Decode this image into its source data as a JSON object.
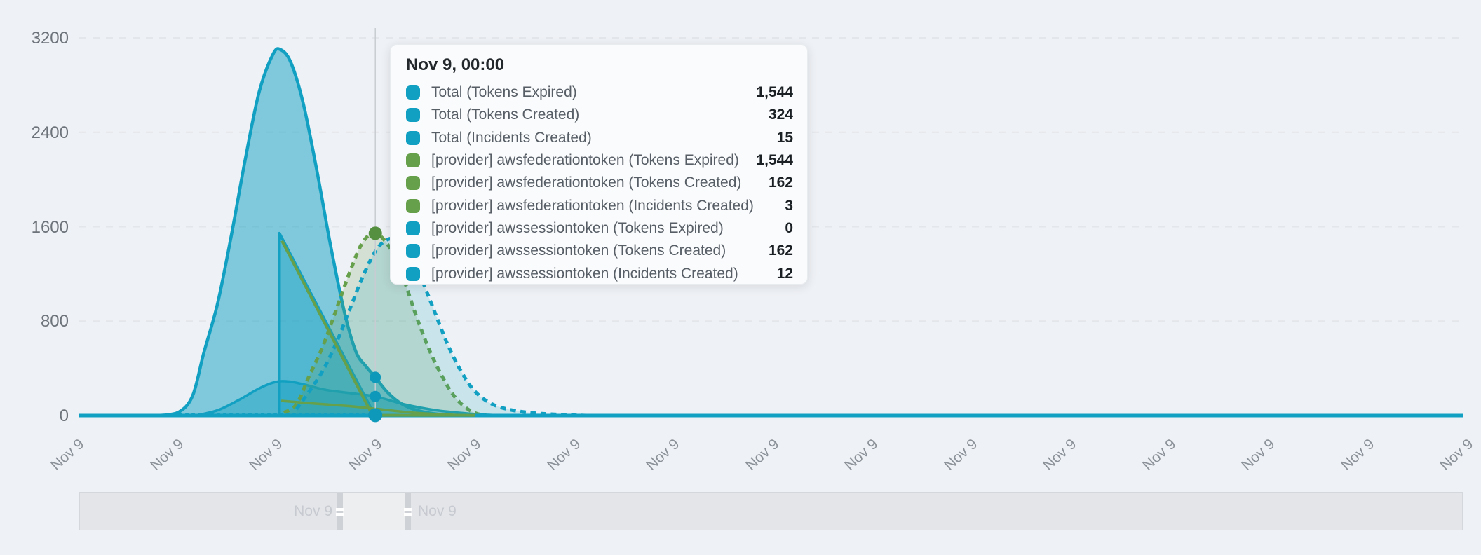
{
  "palette": {
    "teal": "#12a0c2",
    "green": "#67a04a",
    "teal_dot": "#0e98ba",
    "green_dot": "#549040",
    "background": "#eef1f5",
    "gridline": "#e3e6ea",
    "crosshair": "#c8ccd2"
  },
  "chart_data": {
    "type": "area",
    "title": "",
    "xlabel": "",
    "ylabel": "",
    "ylim": [
      0,
      3200
    ],
    "yticks": [
      0,
      800,
      1600,
      2400,
      3200
    ],
    "xtick_labels": [
      "Nov 9",
      "Nov 9",
      "Nov 9",
      "Nov 9",
      "Nov 9",
      "Nov 9",
      "Nov 9",
      "Nov 9",
      "Nov 9",
      "Nov 9",
      "Nov 9",
      "Nov 9",
      "Nov 9",
      "Nov 9",
      "Nov 9"
    ],
    "grid": "horizontal-dashed",
    "legend": "none",
    "crosshair_f": 0.214,
    "tooltip": {
      "title": "Nov 9, 00:00",
      "rows": [
        {
          "color": "teal",
          "label": "Total (Tokens Expired)",
          "value": "1,544"
        },
        {
          "color": "teal",
          "label": "Total (Tokens Created)",
          "value": "324"
        },
        {
          "color": "teal",
          "label": "Total (Incidents Created)",
          "value": "15"
        },
        {
          "color": "green",
          "label": "[provider] awsfederationtoken (Tokens Expired)",
          "value": "1,544"
        },
        {
          "color": "green",
          "label": "[provider] awsfederationtoken (Tokens Created)",
          "value": "162"
        },
        {
          "color": "green",
          "label": "[provider] awsfederationtoken (Incidents Created)",
          "value": "3"
        },
        {
          "color": "teal",
          "label": "[provider] awssessiontoken (Tokens Expired)",
          "value": "0"
        },
        {
          "color": "teal",
          "label": "[provider] awssessiontoken (Tokens Created)",
          "value": "162"
        },
        {
          "color": "teal",
          "label": "[provider] awssessiontoken (Incidents Created)",
          "value": "12"
        }
      ]
    },
    "navigator": {
      "left_label": "Nov 9",
      "right_label": "Nov 9"
    },
    "series": [
      {
        "name": "big-teal-bell",
        "color": "teal",
        "style": "solid",
        "width": 4.5,
        "fill": 0.5,
        "smooth": true,
        "points": [
          [
            0.058,
            0
          ],
          [
            0.072,
            30
          ],
          [
            0.082,
            170
          ],
          [
            0.09,
            530
          ],
          [
            0.1,
            950
          ],
          [
            0.11,
            1530
          ],
          [
            0.12,
            2170
          ],
          [
            0.13,
            2740
          ],
          [
            0.14,
            3060
          ],
          [
            0.1455,
            3100
          ],
          [
            0.153,
            2990
          ],
          [
            0.162,
            2640
          ],
          [
            0.172,
            2060
          ],
          [
            0.182,
            1420
          ],
          [
            0.192,
            860
          ],
          [
            0.2,
            540
          ],
          [
            0.207,
            420
          ],
          [
            0.214,
            324
          ],
          [
            0.223,
            195
          ],
          [
            0.233,
            100
          ],
          [
            0.246,
            38
          ],
          [
            0.26,
            10
          ],
          [
            0.275,
            0
          ]
        ]
      },
      {
        "name": "small-teal-bump",
        "color": "teal",
        "style": "solid",
        "width": 3.5,
        "fill": 0.45,
        "smooth": true,
        "points": [
          [
            0.084,
            0
          ],
          [
            0.1,
            45
          ],
          [
            0.115,
            130
          ],
          [
            0.13,
            230
          ],
          [
            0.142,
            285
          ],
          [
            0.152,
            288
          ],
          [
            0.163,
            262
          ],
          [
            0.178,
            218
          ],
          [
            0.196,
            190
          ],
          [
            0.214,
            162
          ],
          [
            0.235,
            95
          ],
          [
            0.258,
            45
          ],
          [
            0.282,
            16
          ],
          [
            0.305,
            0
          ]
        ]
      },
      {
        "name": "expired-drop-triangle",
        "color": "teal",
        "style": "solid",
        "width": 4,
        "fill": 0.42,
        "smooth": false,
        "points": [
          [
            0.1447,
            6
          ],
          [
            0.1447,
            1544
          ],
          [
            0.2135,
            4
          ]
        ]
      },
      {
        "name": "green-dashed-bell",
        "color": "green",
        "style": "dashed",
        "width": 5,
        "fill": 0.2,
        "smooth": true,
        "points": [
          [
            0.148,
            25
          ],
          [
            0.157,
            95
          ],
          [
            0.166,
            330
          ],
          [
            0.176,
            585
          ],
          [
            0.186,
            905
          ],
          [
            0.196,
            1230
          ],
          [
            0.205,
            1470
          ],
          [
            0.214,
            1544
          ],
          [
            0.224,
            1430
          ],
          [
            0.234,
            1170
          ],
          [
            0.244,
            830
          ],
          [
            0.254,
            530
          ],
          [
            0.264,
            295
          ],
          [
            0.272,
            150
          ],
          [
            0.28,
            62
          ],
          [
            0.287,
            18
          ],
          [
            0.294,
            0
          ]
        ]
      },
      {
        "name": "teal-dashed-bell",
        "color": "teal",
        "style": "dashed",
        "width": 5,
        "fill": 0.16,
        "smooth": true,
        "points": [
          [
            0.157,
            55
          ],
          [
            0.166,
            200
          ],
          [
            0.176,
            380
          ],
          [
            0.186,
            620
          ],
          [
            0.196,
            915
          ],
          [
            0.206,
            1205
          ],
          [
            0.216,
            1425
          ],
          [
            0.226,
            1500
          ],
          [
            0.236,
            1420
          ],
          [
            0.246,
            1195
          ],
          [
            0.256,
            905
          ],
          [
            0.266,
            610
          ],
          [
            0.276,
            375
          ],
          [
            0.286,
            205
          ],
          [
            0.298,
            100
          ],
          [
            0.312,
            48
          ],
          [
            0.33,
            20
          ],
          [
            0.35,
            7
          ],
          [
            0.366,
            0
          ]
        ]
      },
      {
        "name": "total-baseline",
        "color": "teal",
        "style": "solid",
        "width": 5,
        "fill": 0,
        "smooth": false,
        "points": [
          [
            0,
            0
          ],
          [
            1,
            0
          ]
        ]
      },
      {
        "name": "zero-dotted-line",
        "color": "teal",
        "style": "dotted",
        "width": 4.5,
        "fill": 0,
        "smooth": false,
        "points": [
          [
            0.073,
            10
          ],
          [
            0.2135,
            10
          ]
        ]
      },
      {
        "name": "green-drop-line",
        "color": "green",
        "style": "solid",
        "width": 4,
        "fill": 0,
        "smooth": false,
        "points": [
          [
            0.1465,
            1480
          ],
          [
            0.212,
            2
          ],
          [
            0.286,
            2
          ]
        ]
      },
      {
        "name": "green-shallow-line",
        "color": "green",
        "style": "solid",
        "width": 3.5,
        "fill": 0,
        "smooth": true,
        "points": [
          [
            0.146,
            125
          ],
          [
            0.17,
            102
          ],
          [
            0.195,
            80
          ],
          [
            0.214,
            58
          ],
          [
            0.24,
            26
          ],
          [
            0.264,
            9
          ],
          [
            0.285,
            0
          ]
        ]
      }
    ],
    "markers": [
      {
        "f": 0.214,
        "v": 1544,
        "color": "green_dot",
        "r": 9.5
      },
      {
        "f": 0.214,
        "v": 324,
        "color": "teal_dot",
        "r": 8
      },
      {
        "f": 0.214,
        "v": 162,
        "color": "teal_dot",
        "r": 8
      },
      {
        "f": 0.214,
        "v": 4,
        "color": "teal_dot",
        "r": 10
      }
    ]
  }
}
